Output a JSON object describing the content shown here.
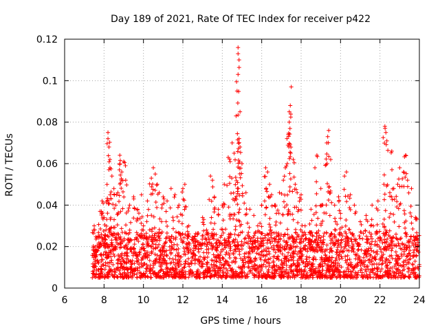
{
  "chart_data": {
    "type": "scatter",
    "title": "Day 189 of 2021, Rate Of TEC Index for receiver p422",
    "xlabel": "GPS time / hours",
    "ylabel": "ROTI / TECUs",
    "xlim": [
      6,
      24
    ],
    "ylim": [
      0,
      0.12
    ],
    "x_ticks": [
      6,
      8,
      10,
      12,
      14,
      16,
      18,
      20,
      22,
      24
    ],
    "x_tick_labels": [
      "6",
      "8",
      "10",
      "12",
      "14",
      "16",
      "18",
      "20",
      "22",
      "24"
    ],
    "y_ticks": [
      0,
      0.02,
      0.04,
      0.06,
      0.08,
      0.1,
      0.12
    ],
    "y_tick_labels": [
      "0",
      "0.02",
      "0.04",
      "0.06",
      "0.08",
      "0.1",
      "0.12"
    ],
    "grid": true,
    "marker": "+",
    "color": "#ff0000",
    "series": [
      {
        "name": "ROTI",
        "points": [
          [
            7.5,
            0.01
          ],
          [
            7.5,
            0.03
          ],
          [
            7.6,
            0.018
          ],
          [
            7.7,
            0.025
          ],
          [
            7.8,
            0.037
          ],
          [
            7.9,
            0.042
          ],
          [
            8.0,
            0.034
          ],
          [
            8.1,
            0.028
          ],
          [
            8.2,
            0.075
          ],
          [
            8.2,
            0.072
          ],
          [
            8.25,
            0.068
          ],
          [
            8.3,
            0.062
          ],
          [
            8.3,
            0.058
          ],
          [
            8.4,
            0.054
          ],
          [
            8.5,
            0.048
          ],
          [
            8.6,
            0.04
          ],
          [
            8.7,
            0.046
          ],
          [
            8.8,
            0.064
          ],
          [
            8.8,
            0.06
          ],
          [
            8.9,
            0.056
          ],
          [
            9.0,
            0.061
          ],
          [
            9.1,
            0.052
          ],
          [
            9.3,
            0.04
          ],
          [
            9.5,
            0.044
          ],
          [
            9.7,
            0.038
          ],
          [
            9.9,
            0.045
          ],
          [
            10.0,
            0.03
          ],
          [
            10.2,
            0.042
          ],
          [
            10.4,
            0.053
          ],
          [
            10.5,
            0.058
          ],
          [
            10.6,
            0.055
          ],
          [
            10.7,
            0.05
          ],
          [
            10.8,
            0.046
          ],
          [
            11.0,
            0.044
          ],
          [
            11.2,
            0.042
          ],
          [
            11.4,
            0.048
          ],
          [
            11.6,
            0.045
          ],
          [
            11.8,
            0.04
          ],
          [
            12.0,
            0.048
          ],
          [
            12.1,
            0.05
          ],
          [
            12.3,
            0.03
          ],
          [
            12.6,
            0.025
          ],
          [
            13.0,
            0.034
          ],
          [
            13.2,
            0.028
          ],
          [
            13.4,
            0.054
          ],
          [
            13.5,
            0.052
          ],
          [
            13.6,
            0.044
          ],
          [
            13.8,
            0.038
          ],
          [
            14.0,
            0.04
          ],
          [
            14.1,
            0.05
          ],
          [
            14.3,
            0.063
          ],
          [
            14.4,
            0.061
          ],
          [
            14.5,
            0.07
          ],
          [
            14.6,
            0.065
          ],
          [
            14.7,
            0.083
          ],
          [
            14.75,
            0.095
          ],
          [
            14.8,
            0.116
          ],
          [
            14.8,
            0.113
          ],
          [
            14.85,
            0.11
          ],
          [
            14.8,
            0.103
          ],
          [
            14.9,
            0.085
          ],
          [
            14.9,
            0.068
          ],
          [
            15.0,
            0.06
          ],
          [
            15.2,
            0.046
          ],
          [
            15.4,
            0.038
          ],
          [
            15.6,
            0.035
          ],
          [
            15.8,
            0.03
          ],
          [
            16.0,
            0.04
          ],
          [
            16.2,
            0.058
          ],
          [
            16.3,
            0.056
          ],
          [
            16.4,
            0.05
          ],
          [
            16.5,
            0.045
          ],
          [
            16.7,
            0.04
          ],
          [
            16.9,
            0.046
          ],
          [
            17.1,
            0.052
          ],
          [
            17.2,
            0.058
          ],
          [
            17.3,
            0.06
          ],
          [
            17.35,
            0.074
          ],
          [
            17.4,
            0.08
          ],
          [
            17.4,
            0.085
          ],
          [
            17.45,
            0.088
          ],
          [
            17.5,
            0.097
          ],
          [
            17.6,
            0.062
          ],
          [
            17.7,
            0.05
          ],
          [
            17.8,
            0.046
          ],
          [
            18.0,
            0.045
          ],
          [
            18.2,
            0.03
          ],
          [
            18.5,
            0.038
          ],
          [
            18.7,
            0.058
          ],
          [
            18.8,
            0.064
          ],
          [
            19.0,
            0.048
          ],
          [
            19.1,
            0.04
          ],
          [
            19.3,
            0.07
          ],
          [
            19.35,
            0.073
          ],
          [
            19.4,
            0.076
          ],
          [
            19.5,
            0.062
          ],
          [
            19.7,
            0.04
          ],
          [
            19.9,
            0.044
          ],
          [
            20.0,
            0.036
          ],
          [
            20.2,
            0.054
          ],
          [
            20.3,
            0.056
          ],
          [
            20.5,
            0.045
          ],
          [
            20.7,
            0.04
          ],
          [
            21.0,
            0.032
          ],
          [
            21.3,
            0.035
          ],
          [
            21.6,
            0.04
          ],
          [
            21.9,
            0.042
          ],
          [
            22.2,
            0.05
          ],
          [
            22.25,
            0.078
          ],
          [
            22.3,
            0.075
          ],
          [
            22.35,
            0.071
          ],
          [
            22.5,
            0.046
          ],
          [
            22.6,
            0.066
          ],
          [
            22.7,
            0.048
          ],
          [
            22.9,
            0.05
          ],
          [
            23.0,
            0.058
          ],
          [
            23.2,
            0.056
          ],
          [
            23.3,
            0.064
          ],
          [
            23.4,
            0.052
          ],
          [
            23.6,
            0.048
          ],
          [
            23.8,
            0.034
          ],
          [
            23.9,
            0.025
          ]
        ],
        "dense_band": {
          "x_range": [
            7.4,
            24
          ],
          "y_range": [
            0.005,
            0.022
          ]
        }
      }
    ]
  }
}
